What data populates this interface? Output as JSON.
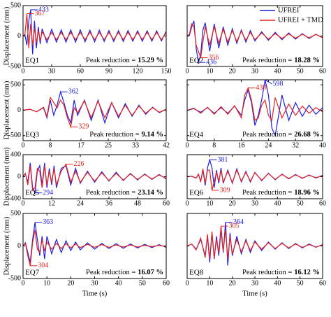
{
  "chart_data": [
    {
      "type": "line",
      "label": "EQ1",
      "ylabel": "Displacement (mm)",
      "xlim": [
        0,
        150
      ],
      "xticks": [
        0,
        30,
        60,
        90,
        120,
        150
      ],
      "ylim": [
        -500,
        500
      ],
      "yticks": [
        -500,
        0,
        500
      ],
      "show_ytick_labels": true,
      "x": [
        0,
        2,
        4,
        6,
        8,
        10,
        12,
        14,
        16,
        18,
        20,
        25,
        30,
        35,
        40,
        45,
        50,
        55,
        60,
        65,
        70,
        75,
        80,
        85,
        90,
        95,
        100,
        105,
        110,
        115,
        120,
        125,
        130,
        135,
        140,
        145,
        150
      ],
      "series": [
        {
          "color": "#1f1fe6",
          "values": [
            0,
            20,
            -150,
            250,
            433,
            -300,
            250,
            -200,
            150,
            -130,
            120,
            -110,
            110,
            -100,
            100,
            -100,
            100,
            -100,
            100,
            -95,
            95,
            -95,
            95,
            -90,
            90,
            -90,
            90,
            -90,
            90,
            -85,
            85,
            -85,
            85,
            -85,
            85,
            -80,
            80
          ]
        },
        {
          "color": "#e8231e",
          "values": [
            0,
            30,
            367,
            -200,
            200,
            -150,
            130,
            -110,
            90,
            -80,
            70,
            -60,
            60,
            -60,
            60,
            -60,
            60,
            -60,
            60,
            -60,
            60,
            -60,
            60,
            -60,
            60,
            -60,
            60,
            -60,
            60,
            -60,
            60,
            -60,
            60,
            -60,
            60,
            -60,
            60
          ]
        }
      ],
      "peaks": [
        {
          "series": 0,
          "x": 8,
          "value": 433,
          "side": "max"
        },
        {
          "series": 1,
          "x": 4,
          "value": 367,
          "side": "max"
        }
      ],
      "reduction_label": "Peak reduction =",
      "reduction": {
        "value": 15.29,
        "label": "15.29 %"
      }
    },
    {
      "type": "line",
      "label": "EQ2",
      "xlim": [
        0,
        60
      ],
      "xticks": [
        0,
        10,
        20,
        30,
        40,
        50,
        60
      ],
      "ylim": [
        -500,
        500
      ],
      "yticks": [
        -500,
        0,
        500
      ],
      "show_ytick_labels": false,
      "legend": "upper right",
      "x": [
        0,
        1,
        2,
        3,
        4,
        5,
        6,
        7,
        8,
        10,
        12,
        14,
        16,
        18,
        20,
        22,
        24,
        26,
        28,
        30,
        33,
        36,
        39,
        42,
        45,
        48,
        51,
        54,
        57,
        60
      ],
      "series": [
        {
          "name": "UFREI",
          "color": "#1f1fe6",
          "values": [
            0,
            10,
            150,
            250,
            -200,
            -436,
            -300,
            100,
            220,
            -250,
            200,
            -200,
            150,
            -150,
            120,
            -120,
            100,
            -100,
            90,
            -80,
            70,
            -70,
            60,
            -60,
            50,
            -50,
            40,
            -40,
            30,
            -30
          ]
        },
        {
          "name": "UFREI + TMD",
          "color": "#e8231e",
          "values": [
            0,
            30,
            200,
            150,
            -150,
            -250,
            -356,
            -100,
            150,
            -150,
            150,
            -120,
            110,
            -100,
            90,
            -90,
            80,
            -70,
            60,
            -60,
            50,
            -50,
            40,
            -40,
            35,
            -35,
            30,
            -30,
            25,
            -25
          ]
        }
      ],
      "peaks": [
        {
          "series": 0,
          "x": 5,
          "value": 436,
          "side": "min"
        },
        {
          "series": 1,
          "x": 6,
          "value": 356,
          "side": "min"
        }
      ],
      "reduction_label": "Peak reduction =",
      "reduction": {
        "value": 18.28,
        "label": "18.28 %"
      }
    },
    {
      "type": "line",
      "label": "EQ3",
      "ylabel": "Displacement (mm)",
      "xlim": [
        0,
        42
      ],
      "xticks": [
        0,
        8,
        17,
        25,
        33,
        42
      ],
      "ylim": [
        -600,
        600
      ],
      "yticks": [
        -500,
        0,
        500
      ],
      "show_ytick_labels": true,
      "x": [
        0,
        2,
        4,
        6,
        7,
        8,
        9,
        10,
        11,
        12,
        13,
        14,
        15,
        16,
        18,
        20,
        22,
        24,
        26,
        28,
        30,
        32,
        34,
        36,
        38,
        40,
        42
      ],
      "series": [
        {
          "color": "#1f1fe6",
          "values": [
            0,
            20,
            -30,
            50,
            -150,
            200,
            -100,
            100,
            362,
            150,
            -100,
            -250,
            200,
            -100,
            200,
            -200,
            200,
            -250,
            150,
            -150,
            130,
            -120,
            100,
            -80,
            60,
            -50,
            20
          ]
        },
        {
          "color": "#e8231e",
          "values": [
            0,
            20,
            -30,
            60,
            -120,
            250,
            150,
            50,
            200,
            100,
            -150,
            -329,
            50,
            -50,
            180,
            -150,
            180,
            -150,
            150,
            -120,
            100,
            -100,
            80,
            -60,
            50,
            -40,
            20
          ]
        }
      ],
      "peaks": [
        {
          "series": 0,
          "x": 11,
          "value": 362,
          "side": "max"
        },
        {
          "series": 1,
          "x": 14,
          "value": 329,
          "side": "min"
        }
      ],
      "reduction_label": "Peak reduction =",
      "reduction": {
        "value": 9.14,
        "label": "9.14 %"
      }
    },
    {
      "type": "line",
      "label": "EQ4",
      "xlim": [
        0,
        40
      ],
      "xticks": [
        0,
        8,
        16,
        24,
        32,
        40
      ],
      "ylim": [
        -600,
        600
      ],
      "yticks": [
        -500,
        0,
        500
      ],
      "show_ytick_labels": false,
      "x": [
        0,
        2,
        4,
        6,
        8,
        10,
        12,
        14,
        16,
        17,
        18,
        19,
        20,
        21,
        22,
        23,
        24,
        25,
        26,
        28,
        30,
        32,
        34,
        36,
        38,
        40
      ],
      "series": [
        {
          "color": "#1f1fe6",
          "values": [
            0,
            30,
            -40,
            50,
            -60,
            50,
            -60,
            80,
            -100,
            200,
            400,
            150,
            -300,
            -100,
            200,
            598,
            300,
            -350,
            -500,
            300,
            -200,
            150,
            -120,
            100,
            -80,
            50
          ]
        },
        {
          "color": "#e8231e",
          "values": [
            0,
            40,
            -60,
            60,
            -80,
            70,
            -80,
            90,
            -150,
            300,
            438,
            200,
            -200,
            -150,
            100,
            200,
            -100,
            -200,
            250,
            -150,
            120,
            -100,
            80,
            -60,
            50,
            -30
          ]
        }
      ],
      "peaks": [
        {
          "series": 0,
          "x": 23,
          "value": 598,
          "side": "max"
        },
        {
          "series": 1,
          "x": 18,
          "value": 438,
          "side": "max"
        }
      ],
      "reduction_label": "Peak reduction =",
      "reduction": {
        "value": 26.68,
        "label": "26.68 %"
      }
    },
    {
      "type": "line",
      "label": "EQ5",
      "ylabel": "Displacement (mm)",
      "xlim": [
        0,
        60
      ],
      "xticks": [
        0,
        12,
        24,
        36,
        48,
        60
      ],
      "ylim": [
        -400,
        400
      ],
      "yticks": [
        -400,
        0,
        400
      ],
      "show_ytick_labels": true,
      "x": [
        0,
        1,
        2,
        3,
        4,
        5,
        6,
        7,
        8,
        9,
        10,
        11,
        12,
        13,
        14,
        16,
        18,
        20,
        22,
        24,
        27,
        30,
        33,
        36,
        39,
        42,
        45,
        48,
        51,
        54,
        57,
        60
      ],
      "series": [
        {
          "color": "#1f1fe6",
          "values": [
            0,
            50,
            -100,
            250,
            -200,
            -294,
            100,
            200,
            -150,
            250,
            -200,
            150,
            -150,
            200,
            -200,
            150,
            200,
            -150,
            150,
            -120,
            100,
            -100,
            90,
            -80,
            80,
            -70,
            60,
            -60,
            50,
            -50,
            40,
            -40
          ]
        },
        {
          "color": "#e8231e",
          "values": [
            0,
            60,
            -150,
            200,
            -250,
            -200,
            150,
            100,
            -200,
            200,
            -150,
            100,
            -100,
            150,
            -150,
            100,
            226,
            -100,
            100,
            -100,
            80,
            -80,
            70,
            -70,
            60,
            -60,
            50,
            -50,
            40,
            -40,
            30,
            -30
          ]
        }
      ],
      "peaks": [
        {
          "series": 0,
          "x": 5,
          "value": 294,
          "side": "min"
        },
        {
          "series": 1,
          "x": 18,
          "value": 226,
          "side": "max"
        }
      ],
      "reduction_label": "Peak reduction =",
      "reduction": {
        "value": 23.14,
        "label": "23.14 %"
      }
    },
    {
      "type": "line",
      "label": "EQ6",
      "xlim": [
        0,
        60
      ],
      "xticks": [
        0,
        10,
        20,
        30,
        40,
        50,
        60
      ],
      "ylim": [
        -500,
        500
      ],
      "yticks": [
        -500,
        0,
        500
      ],
      "show_ytick_labels": false,
      "x": [
        0,
        2,
        4,
        5,
        6,
        7,
        8,
        9,
        10,
        11,
        12,
        13,
        14,
        15,
        16,
        18,
        20,
        22,
        24,
        26,
        28,
        30,
        33,
        36,
        39,
        42,
        45,
        48,
        51,
        54,
        57,
        60
      ],
      "series": [
        {
          "color": "#1f1fe6",
          "values": [
            0,
            10,
            -30,
            50,
            -100,
            150,
            -200,
            200,
            381,
            200,
            -250,
            150,
            -150,
            200,
            -150,
            150,
            -150,
            180,
            -120,
            120,
            -120,
            100,
            -90,
            80,
            -70,
            60,
            -50,
            50,
            -40,
            40,
            -30,
            30
          ]
        },
        {
          "color": "#e8231e",
          "values": [
            0,
            10,
            -30,
            60,
            -120,
            180,
            -150,
            150,
            150,
            -309,
            -100,
            100,
            -100,
            150,
            -120,
            120,
            -130,
            150,
            -100,
            100,
            -100,
            90,
            -80,
            70,
            -60,
            50,
            -40,
            40,
            -30,
            30,
            -20,
            20
          ]
        }
      ],
      "peaks": [
        {
          "series": 0,
          "x": 10,
          "value": 381,
          "side": "max"
        },
        {
          "series": 1,
          "x": 11,
          "value": 309,
          "side": "min"
        }
      ],
      "reduction_label": "Peak reduction =",
      "reduction": {
        "value": 18.96,
        "label": "18.96 %"
      }
    },
    {
      "type": "line",
      "label": "EQ7",
      "ylabel": "Displacement (mm)",
      "xlabel": "Time (s)",
      "xlim": [
        0,
        60
      ],
      "xticks": [
        0,
        10,
        20,
        30,
        40,
        50,
        60
      ],
      "ylim": [
        -500,
        500
      ],
      "yticks": [
        -500,
        0,
        500
      ],
      "show_ytick_labels": true,
      "x": [
        0,
        1,
        2,
        3,
        4,
        5,
        6,
        7,
        8,
        9,
        10,
        12,
        14,
        16,
        18,
        20,
        22,
        24,
        27,
        30,
        33,
        36,
        39,
        42,
        45,
        48,
        51,
        54,
        57,
        60
      ],
      "series": [
        {
          "color": "#1f1fe6",
          "values": [
            0,
            50,
            -100,
            -250,
            100,
            363,
            100,
            -150,
            150,
            -200,
            150,
            -120,
            100,
            -100,
            80,
            -70,
            60,
            -60,
            50,
            -50,
            40,
            -40,
            35,
            -35,
            30,
            -30,
            25,
            -25,
            20,
            -20
          ]
        },
        {
          "color": "#e8231e",
          "values": [
            0,
            40,
            -150,
            -304,
            50,
            250,
            -50,
            -100,
            100,
            -80,
            60,
            -50,
            40,
            -40,
            35,
            -30,
            30,
            -25,
            25,
            -20,
            20,
            -20,
            15,
            -15,
            15,
            -15,
            10,
            -10,
            10,
            -10
          ]
        }
      ],
      "peaks": [
        {
          "series": 0,
          "x": 5,
          "value": 363,
          "side": "max"
        },
        {
          "series": 1,
          "x": 3,
          "value": 304,
          "side": "min"
        }
      ],
      "reduction_label": "Peak reduction =",
      "reduction": {
        "value": 16.07,
        "label": "16.07 %"
      }
    },
    {
      "type": "line",
      "label": "EQ8",
      "xlabel": "Time (s)",
      "xlim": [
        0,
        60
      ],
      "xticks": [
        0,
        10,
        20,
        30,
        40,
        50,
        60
      ],
      "ylim": [
        -500,
        500
      ],
      "yticks": [
        -500,
        0,
        500
      ],
      "show_ytick_labels": false,
      "x": [
        0,
        2,
        4,
        6,
        8,
        9,
        10,
        11,
        12,
        13,
        14,
        15,
        16,
        17,
        18,
        19,
        20,
        22,
        24,
        26,
        28,
        30,
        33,
        36,
        39,
        42,
        45,
        48,
        51,
        54,
        57,
        60
      ],
      "series": [
        {
          "color": "#1f1fe6",
          "values": [
            0,
            30,
            -50,
            100,
            -150,
            150,
            -250,
            200,
            -200,
            150,
            -150,
            250,
            -100,
            364,
            -300,
            200,
            -150,
            150,
            -120,
            100,
            -100,
            80,
            -70,
            60,
            -50,
            50,
            -40,
            40,
            -30,
            30,
            -20,
            20
          ]
        },
        {
          "color": "#e8231e",
          "values": [
            0,
            30,
            -60,
            120,
            -180,
            180,
            -200,
            220,
            -180,
            100,
            -100,
            305,
            -80,
            250,
            -200,
            150,
            -120,
            100,
            -90,
            80,
            -70,
            60,
            -50,
            50,
            -40,
            40,
            -30,
            30,
            -20,
            20,
            -15,
            15
          ]
        }
      ],
      "peaks": [
        {
          "series": 0,
          "x": 17,
          "value": 364,
          "side": "max"
        },
        {
          "series": 1,
          "x": 15,
          "value": 305,
          "side": "max"
        }
      ],
      "reduction_label": "Peak reduction =",
      "reduction": {
        "value": 16.12,
        "label": "16.12 %"
      }
    }
  ]
}
